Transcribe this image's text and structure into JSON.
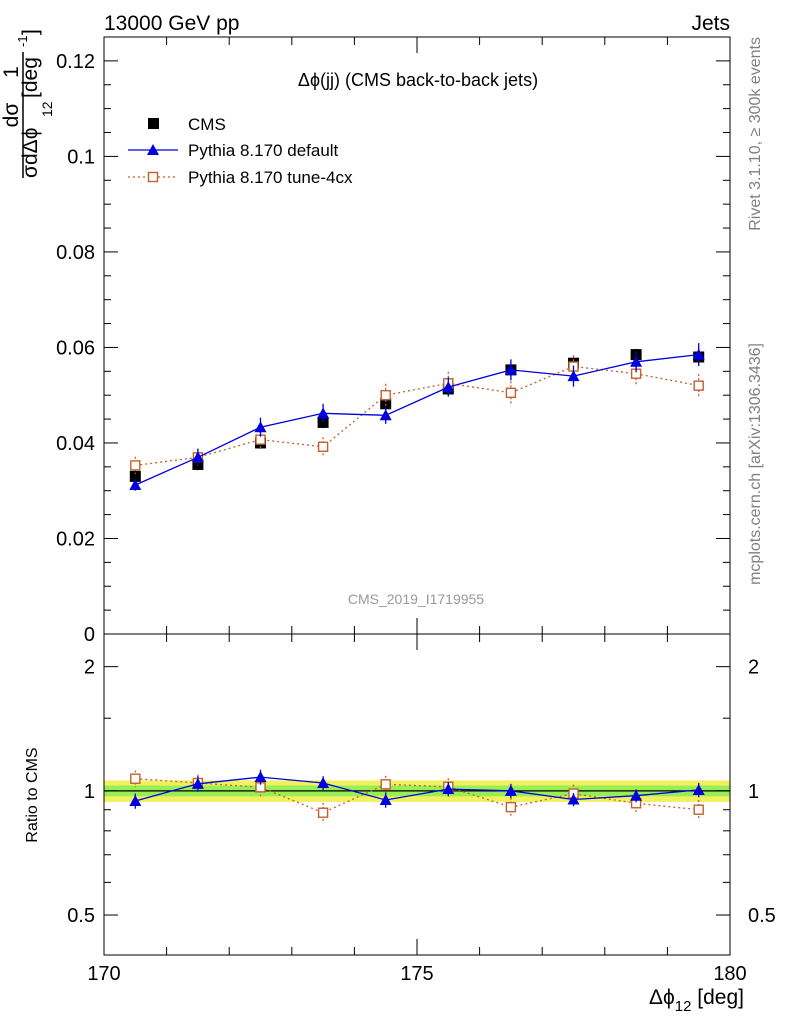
{
  "header": {
    "left": "13000 GeV pp",
    "right": "Jets"
  },
  "side_labels": {
    "rivet": "Rivet 3.1.10, ≥ 300k events",
    "mcplots": "mcplots.cern.ch [arXiv:1306.3436]"
  },
  "plot_title": "Δϕ(jj) (CMS back-to-back jets)",
  "analysis_id": "CMS_2019_I1719955",
  "colors": {
    "data": "#000000",
    "default": "#0000dd",
    "tune": "#c0622e",
    "band_outer": "#f0f060",
    "band_inner": "#99ee55"
  },
  "chart_data": [
    {
      "type": "scatter",
      "panel": "main",
      "ylabel_parts": {
        "one": "1",
        "dsigma": "dσ",
        "sigma": "σ",
        "dphi": "dΔϕ",
        "sub": "12",
        "unit": "[deg",
        "unit_exp": "-1",
        "unit_close": "]"
      },
      "ylim": [
        0,
        0.125
      ],
      "yticks": [
        0,
        0.02,
        0.04,
        0.06,
        0.08,
        0.1,
        0.12
      ],
      "ytick_labels": [
        "0",
        "0.02",
        "0.04",
        "0.06",
        "0.08",
        "0.1",
        "0.12"
      ],
      "xlim": [
        170,
        180
      ],
      "legend_position": "top-left",
      "series": [
        {
          "name": "CMS",
          "style": "data",
          "x": [
            170.5,
            171.5,
            172.5,
            173.5,
            174.5,
            175.5,
            176.5,
            177.5,
            178.5,
            179.5
          ],
          "y": [
            0.033,
            0.0355,
            0.04,
            0.0443,
            0.0482,
            0.0513,
            0.0553,
            0.0567,
            0.0585,
            0.058
          ],
          "err": [
            0.0012,
            0.0012,
            0.0012,
            0.0012,
            0.0012,
            0.0012,
            0.0012,
            0.0012,
            0.0012,
            0.0012
          ]
        },
        {
          "name": "Pythia 8.170 default",
          "style": "default",
          "x": [
            170.5,
            171.5,
            172.5,
            173.5,
            174.5,
            175.5,
            176.5,
            177.5,
            178.5,
            179.5
          ],
          "y": [
            0.0312,
            0.037,
            0.0433,
            0.0462,
            0.0458,
            0.0517,
            0.0553,
            0.054,
            0.057,
            0.0585
          ],
          "err": [
            0.0012,
            0.0018,
            0.002,
            0.002,
            0.0018,
            0.002,
            0.0022,
            0.0022,
            0.0022,
            0.0024
          ]
        },
        {
          "name": "Pythia 8.170 tune-4cx",
          "style": "tune",
          "x": [
            170.5,
            171.5,
            172.5,
            173.5,
            174.5,
            175.5,
            176.5,
            177.5,
            178.5,
            179.5
          ],
          "y": [
            0.0353,
            0.037,
            0.0407,
            0.0392,
            0.05,
            0.0525,
            0.0505,
            0.056,
            0.0545,
            0.052
          ],
          "err": [
            0.0018,
            0.0018,
            0.002,
            0.002,
            0.0024,
            0.0024,
            0.0024,
            0.0024,
            0.0024,
            0.0024
          ]
        }
      ]
    },
    {
      "type": "scatter",
      "panel": "ratio",
      "ylabel": "Ratio to CMS",
      "ylim": [
        0.4,
        2.4
      ],
      "yscale": "log",
      "yticks": [
        0.5,
        1,
        2
      ],
      "ytick_labels": [
        "0.5",
        "1",
        "2"
      ],
      "xlabel_parts": {
        "main": "Δϕ",
        "sub": "12",
        "unit": " [deg]"
      },
      "xlim": [
        170,
        180
      ],
      "xticks": [
        170,
        175,
        180
      ],
      "xtick_labels": [
        "170",
        "175",
        "180"
      ],
      "band": {
        "inner": 0.03,
        "outer": 0.06
      },
      "series": [
        {
          "name": "Pythia 8.170 default",
          "style": "default",
          "x": [
            170.5,
            171.5,
            172.5,
            173.5,
            174.5,
            175.5,
            176.5,
            177.5,
            178.5,
            179.5
          ],
          "y": [
            0.945,
            1.04,
            1.08,
            1.045,
            0.95,
            1.01,
            1.0,
            0.953,
            0.973,
            1.005
          ],
          "err": [
            0.04,
            0.045,
            0.045,
            0.04,
            0.04,
            0.04,
            0.04,
            0.035,
            0.035,
            0.04
          ]
        },
        {
          "name": "Pythia 8.170 tune-4cx",
          "style": "tune",
          "x": [
            170.5,
            171.5,
            172.5,
            173.5,
            174.5,
            175.5,
            176.5,
            177.5,
            178.5,
            179.5
          ],
          "y": [
            1.07,
            1.045,
            1.02,
            0.885,
            1.037,
            1.023,
            0.913,
            0.985,
            0.933,
            0.9
          ],
          "err": [
            0.05,
            0.05,
            0.05,
            0.05,
            0.05,
            0.05,
            0.05,
            0.05,
            0.05,
            0.05
          ]
        }
      ]
    }
  ]
}
